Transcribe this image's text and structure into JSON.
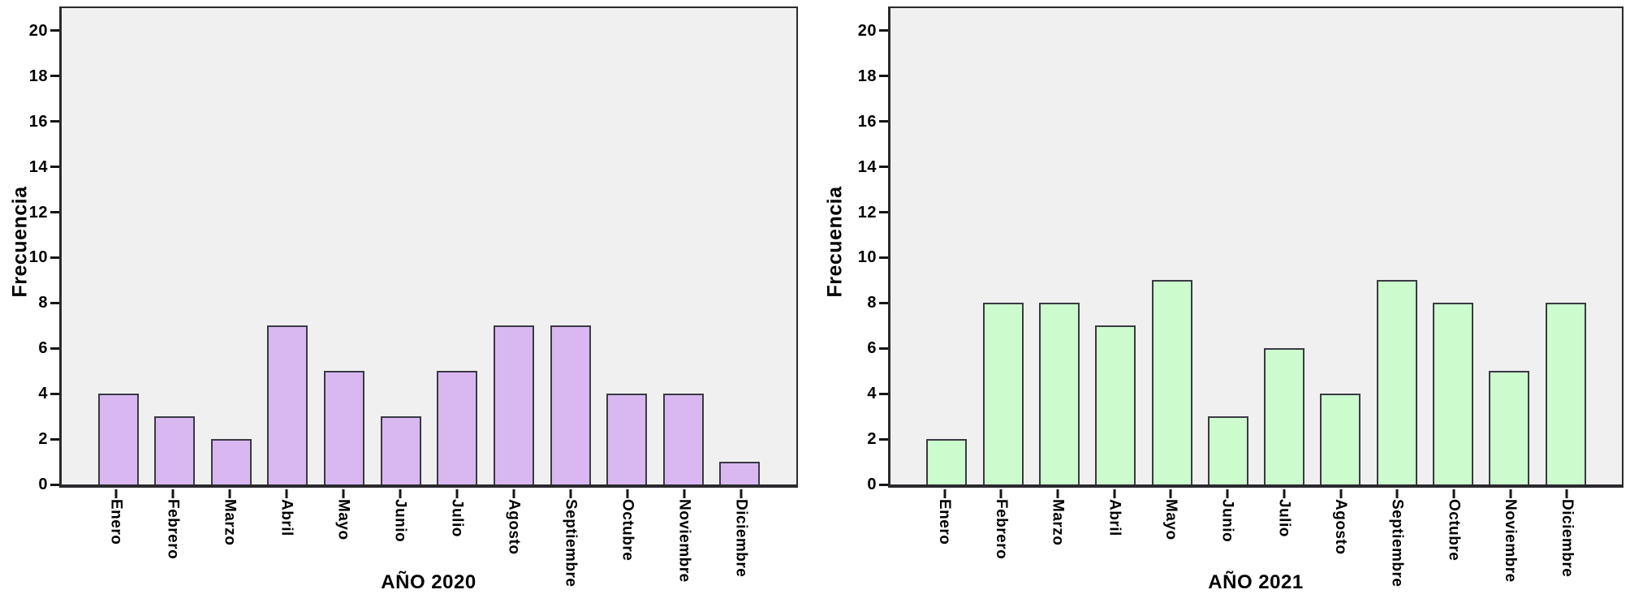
{
  "chart_data": [
    {
      "type": "bar",
      "title": "AÑO 2020",
      "xlabel": "AÑO 2020",
      "ylabel": "Frecuencia",
      "categories": [
        "Enero",
        "Febrero",
        "Marzo",
        "Abril",
        "Mayo",
        "Junio",
        "Julio",
        "Agosto",
        "Septiembre",
        "Octubre",
        "Noviembre",
        "Diciembre"
      ],
      "values": [
        4,
        3,
        2,
        7,
        5,
        3,
        5,
        7,
        7,
        4,
        4,
        1
      ],
      "ylim": [
        0,
        21
      ],
      "yticks": [
        0,
        2,
        4,
        6,
        8,
        10,
        12,
        14,
        16,
        18,
        20
      ],
      "grid": false,
      "legend": "none",
      "bar_color": "#d9b8f2",
      "bar_border": "#3a3a44",
      "plot_bg": "#f0f0f0",
      "axis_color": "#2a2a2e"
    },
    {
      "type": "bar",
      "title": "AÑO 2021",
      "xlabel": "AÑO 2021",
      "ylabel": "Frecuencia",
      "categories": [
        "Enero",
        "Febrero",
        "Marzo",
        "Abril",
        "Mayo",
        "Junio",
        "Julio",
        "Agosto",
        "Septiembre",
        "Octubre",
        "Noviembre",
        "Diciembre"
      ],
      "values": [
        2,
        8,
        8,
        7,
        9,
        3,
        6,
        4,
        9,
        8,
        5,
        8
      ],
      "ylim": [
        0,
        21
      ],
      "yticks": [
        0,
        2,
        4,
        6,
        8,
        10,
        12,
        14,
        16,
        18,
        20
      ],
      "grid": false,
      "legend": "none",
      "bar_color": "#ccfccd",
      "bar_border": "#3a3a44",
      "plot_bg": "#f0f0f0",
      "axis_color": "#2a2a2e"
    }
  ]
}
